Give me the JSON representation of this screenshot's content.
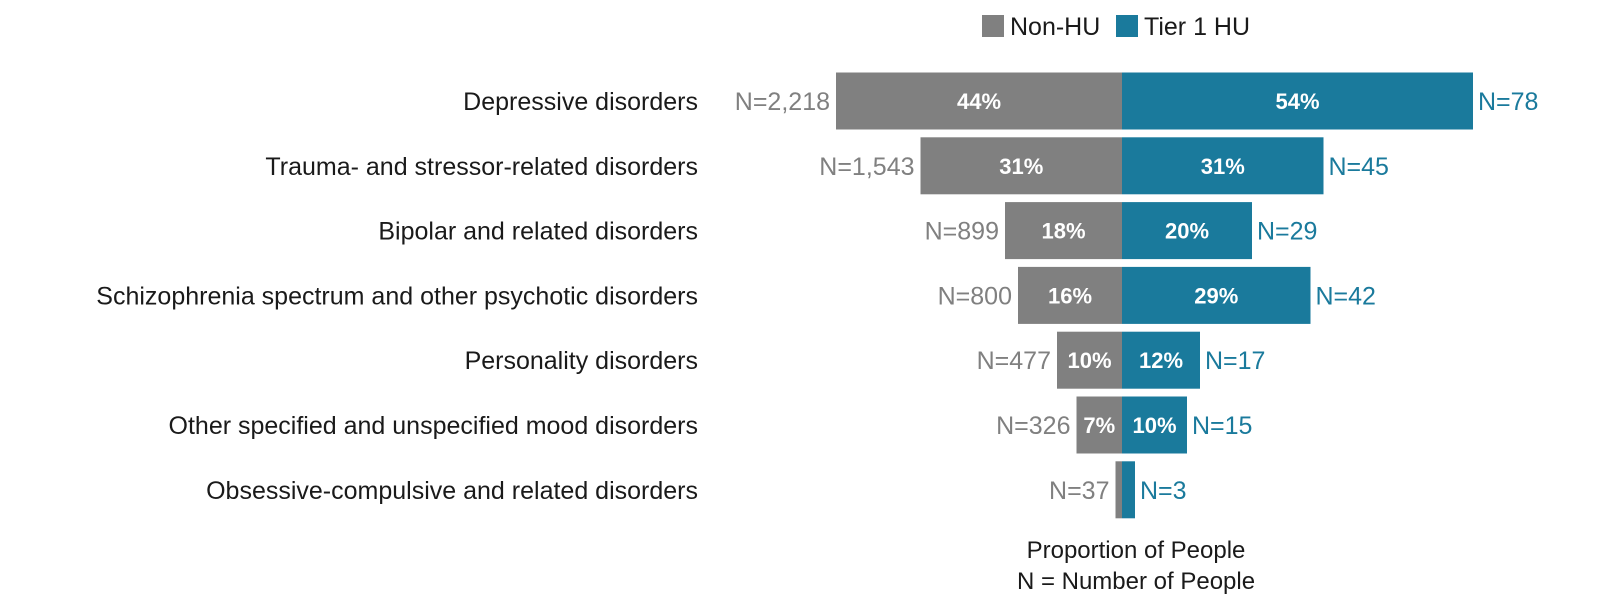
{
  "chart_data": {
    "type": "bar",
    "orientation": "horizontal-diverging",
    "legend": {
      "placement": "top-center"
    },
    "xlabel": "Proportion of People",
    "xlabel_note": "N = Number of People",
    "colors": {
      "Non-HU": "#808080",
      "Tier 1 HU": "#1a7a9c"
    },
    "categories": [
      "Depressive disorders",
      "Trauma- and stressor-related disorders",
      "Bipolar and related disorders",
      "Schizophrenia spectrum and other psychotic disorders",
      "Personality disorders",
      "Other specified and unspecified mood disorders",
      "Obsessive-compulsive and related disorders"
    ],
    "series": [
      {
        "name": "Non-HU",
        "direction": "left",
        "values": [
          44,
          31,
          18,
          16,
          10,
          7,
          1
        ],
        "pct_labels": [
          "44%",
          "31%",
          "18%",
          "16%",
          "10%",
          "7%",
          ""
        ],
        "n_labels": [
          "N=2,218",
          "N=1,543",
          "N=899",
          "N=800",
          "N=477",
          "N=326",
          "N=37"
        ]
      },
      {
        "name": "Tier 1 HU",
        "direction": "right",
        "values": [
          54,
          31,
          20,
          29,
          12,
          10,
          2
        ],
        "pct_labels": [
          "54%",
          "31%",
          "20%",
          "29%",
          "12%",
          "10%",
          ""
        ],
        "n_labels": [
          "N=78",
          "N=45",
          "N=29",
          "N=42",
          "N=17",
          "N=15",
          "N=3"
        ]
      }
    ],
    "grid": false
  }
}
